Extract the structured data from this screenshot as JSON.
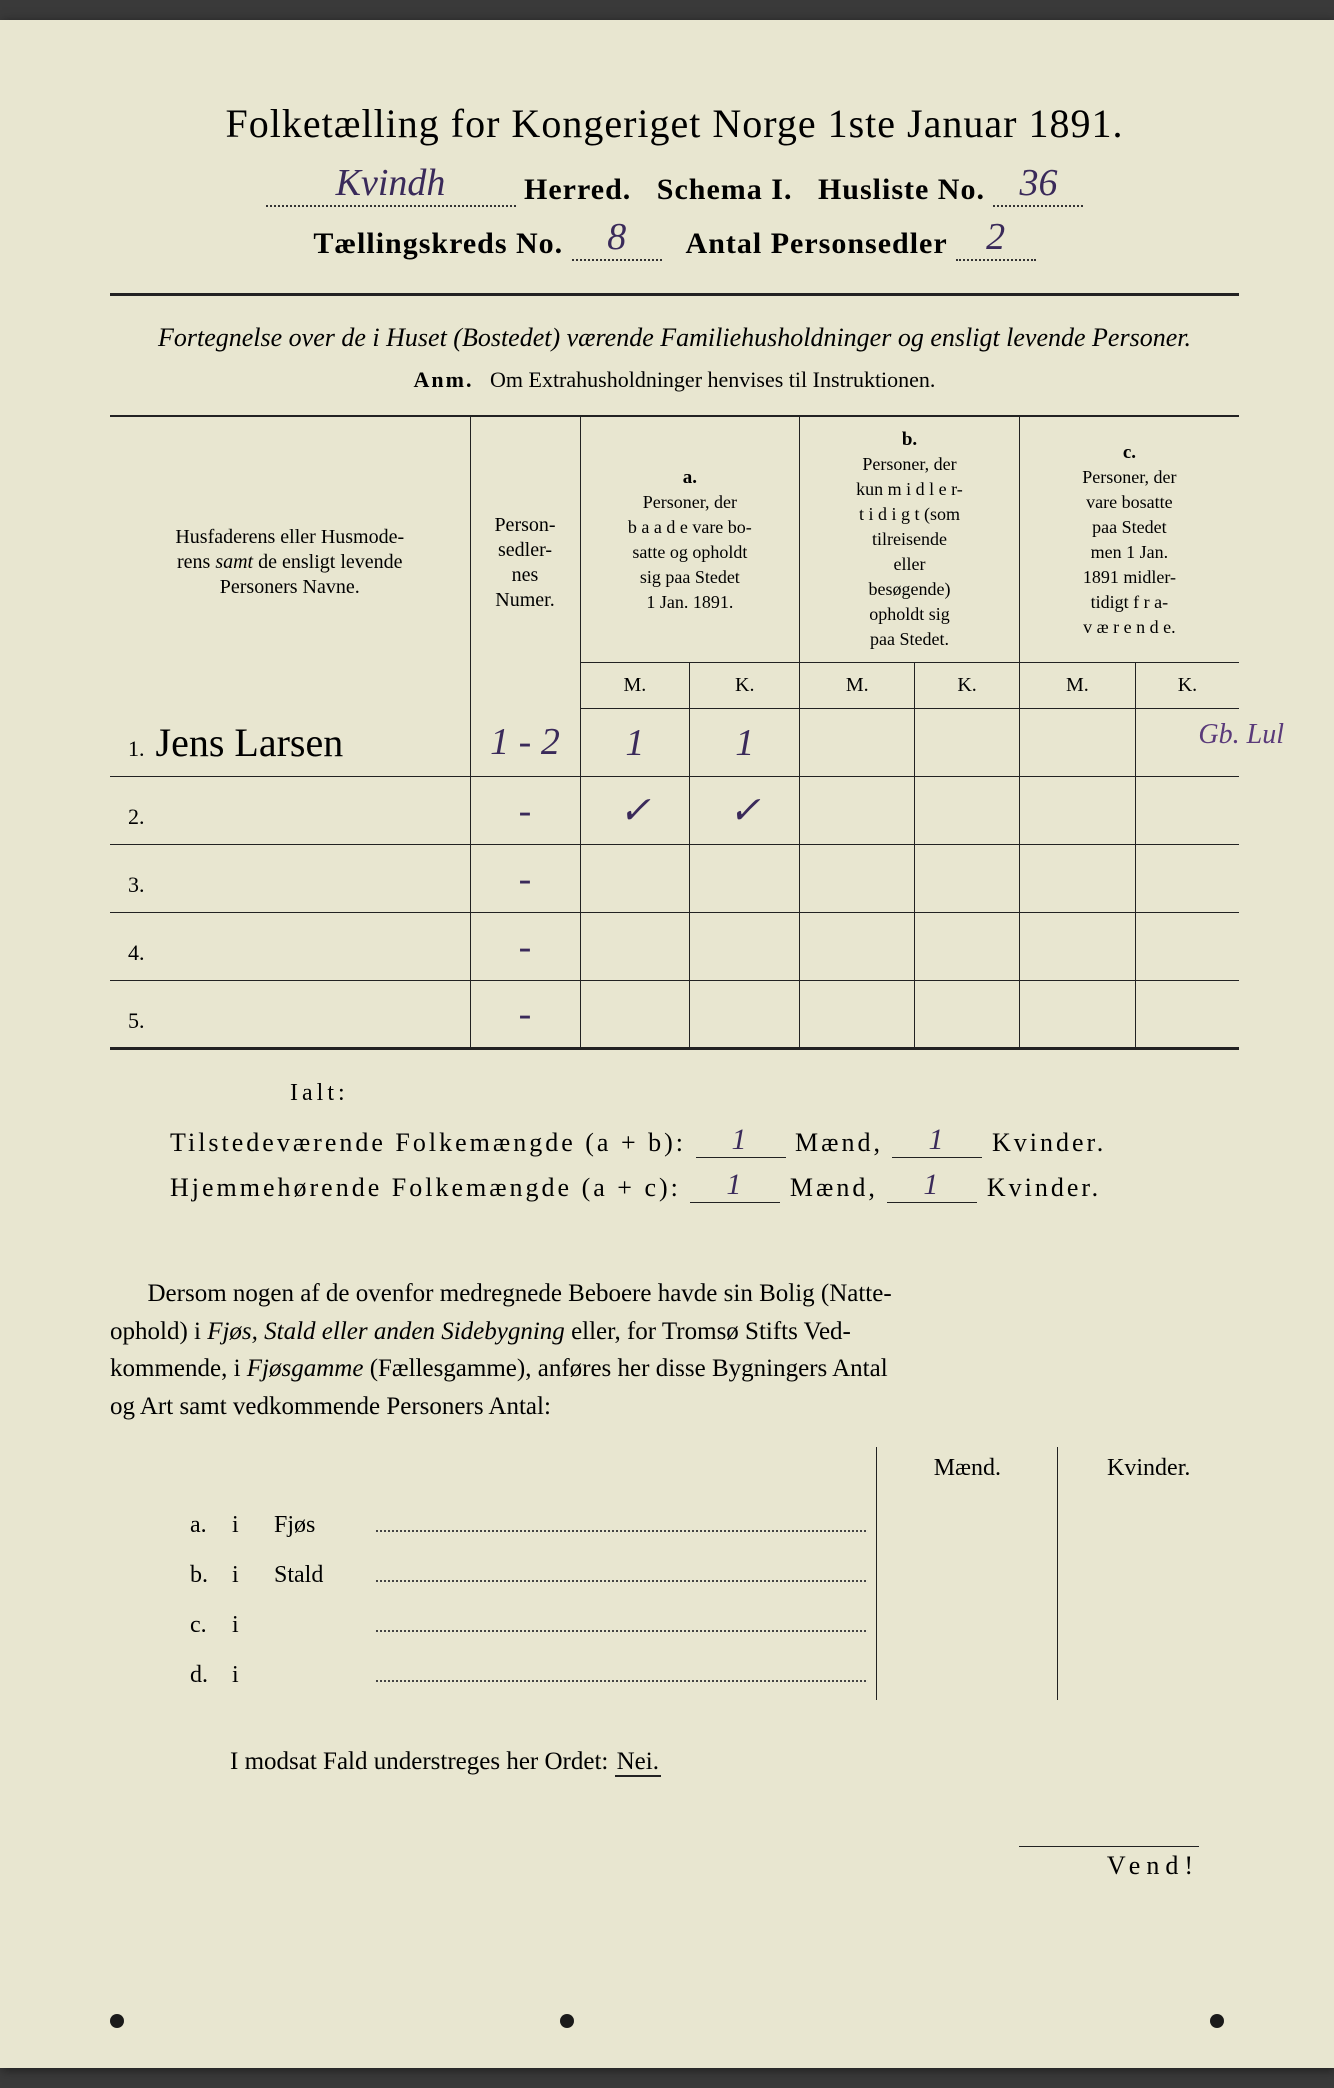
{
  "colors": {
    "paper": "#e8e6d0",
    "ink": "#222222",
    "handwriting": "#3a2a5a",
    "background": "#3a3a3a"
  },
  "header": {
    "title": "Folketælling for Kongeriget Norge 1ste Januar 1891.",
    "herred_hw": "Kvindh",
    "herred_label": "Herred.",
    "schema_label": "Schema I.",
    "husliste_label": "Husliste No.",
    "husliste_hw": "36",
    "kreds_label": "Tællingskreds No.",
    "kreds_hw": "8",
    "antal_label": "Antal Personsedler",
    "antal_hw": "2"
  },
  "subheading": {
    "line": "Fortegnelse over de i Huset (Bostedet) værende Familiehusholdninger og ensligt levende Personer.",
    "anm_label": "Anm.",
    "anm_text": "Om Extrahusholdninger henvises til Instruktionen."
  },
  "table": {
    "col_names": "Husfaderens eller Husmoderens samt de ensligt levende Personers Navne.",
    "col_numer": "Person-sedler-nes Numer.",
    "group_a_label": "a.",
    "group_a": "Personer, der baade vare bosatte og opholdt sig paa Stedet 1 Jan. 1891.",
    "group_b_label": "b.",
    "group_b": "Personer, der kun midlertidigt (som tilreisende eller besøgende) opholdt sig paa Stedet.",
    "group_c_label": "c.",
    "group_c": "Personer, der vare bosatte paa Stedet men 1 Jan. 1891 midlertidigt fraværende.",
    "mk_m": "M.",
    "mk_k": "K.",
    "rows": [
      {
        "n": "1.",
        "name": "Jens Larsen",
        "numer": "1 - 2",
        "a_m": "1",
        "a_k": "1",
        "b_m": "",
        "b_k": "",
        "c_m": "",
        "c_k": "",
        "margin": "Gb. Lul"
      },
      {
        "n": "2.",
        "name": "",
        "numer": "-",
        "a_m": "✓",
        "a_k": "✓",
        "b_m": "",
        "b_k": "",
        "c_m": "",
        "c_k": "",
        "margin": ""
      },
      {
        "n": "3.",
        "name": "",
        "numer": "-",
        "a_m": "",
        "a_k": "",
        "b_m": "",
        "b_k": "",
        "c_m": "",
        "c_k": "",
        "margin": ""
      },
      {
        "n": "4.",
        "name": "",
        "numer": "-",
        "a_m": "",
        "a_k": "",
        "b_m": "",
        "b_k": "",
        "c_m": "",
        "c_k": "",
        "margin": ""
      },
      {
        "n": "5.",
        "name": "",
        "numer": "-",
        "a_m": "",
        "a_k": "",
        "b_m": "",
        "b_k": "",
        "c_m": "",
        "c_k": "",
        "margin": ""
      }
    ]
  },
  "totals": {
    "ialt": "Ialt:",
    "line1_label": "Tilstedeværende Folkemængde (a + b):",
    "line2_label": "Hjemmehørende Folkemængde (a + c):",
    "maend": "Mænd,",
    "kvinder": "Kvinder.",
    "l1_m": "1",
    "l1_k": "1",
    "l2_m": "1",
    "l2_k": "1"
  },
  "paragraph": "Dersom nogen af de ovenfor medregnede Beboere havde sin Bolig (Natteophold) i Fjøs, Stald eller anden Sidebygning eller, for Tromsø Stifts Vedkommende, i Fjøsgamme (Fællesgamme), anføres her disse Bygningers Antal og Art samt vedkommende Personers Antal:",
  "subtable": {
    "maend": "Mænd.",
    "kvinder": "Kvinder.",
    "rows": [
      {
        "idx": "a.",
        "i": "i",
        "label": "Fjøs"
      },
      {
        "idx": "b.",
        "i": "i",
        "label": "Stald"
      },
      {
        "idx": "c.",
        "i": "i",
        "label": ""
      },
      {
        "idx": "d.",
        "i": "i",
        "label": ""
      }
    ]
  },
  "nei_line": "I modsat Fald understreges her Ordet:",
  "nei": "Nei.",
  "vend": "Vend!"
}
